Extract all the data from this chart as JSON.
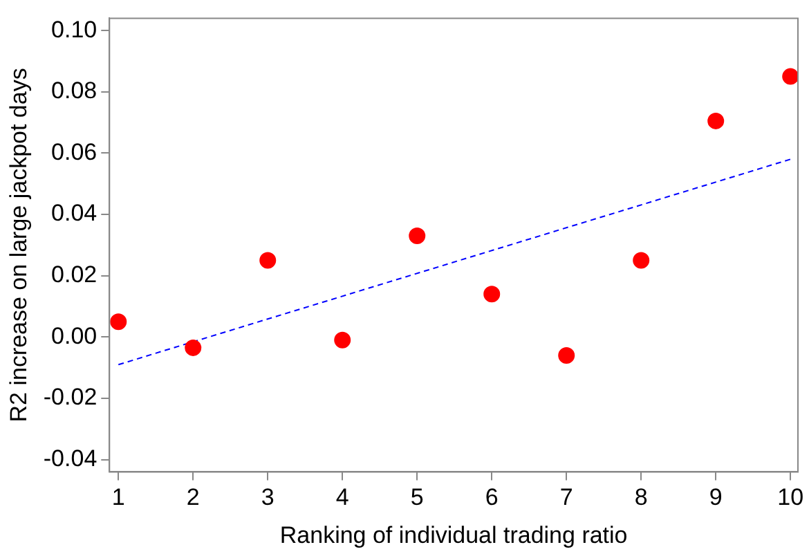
{
  "chart_data": {
    "type": "scatter",
    "xlabel": "Ranking of individual trading ratio",
    "ylabel": "R2 increase on large jackpot days",
    "x": [
      1,
      2,
      3,
      4,
      5,
      6,
      7,
      8,
      9,
      10
    ],
    "series": [
      {
        "type": "scatter",
        "color": "#ff0000",
        "marker": "circle",
        "values": [
          0.005,
          -0.0035,
          0.025,
          -0.001,
          0.033,
          0.014,
          -0.006,
          0.025,
          0.0705,
          0.085
        ]
      },
      {
        "type": "line",
        "color": "#0000ff",
        "line_style": "dashed",
        "marker": "none",
        "x": [
          1,
          10
        ],
        "values": [
          -0.009,
          0.058
        ]
      }
    ],
    "xlim": [
      0.88,
      10.1
    ],
    "xticks": [
      1,
      2,
      3,
      4,
      5,
      6,
      7,
      8,
      9,
      10
    ],
    "ylim": [
      -0.044,
      0.104
    ],
    "yticks": [
      {
        "value": -0.04,
        "label": "-0.04"
      },
      {
        "value": -0.02,
        "label": "-0.02"
      },
      {
        "value": 0,
        "label": "0.00"
      },
      {
        "value": 0.02,
        "label": "0.02"
      },
      {
        "value": 0.04,
        "label": "0.04"
      },
      {
        "value": 0.06,
        "label": "0.06"
      },
      {
        "value": 0.08,
        "label": "0.08"
      },
      {
        "value": 0.1,
        "label": "0.10"
      }
    ],
    "grid": false,
    "legend": false
  }
}
